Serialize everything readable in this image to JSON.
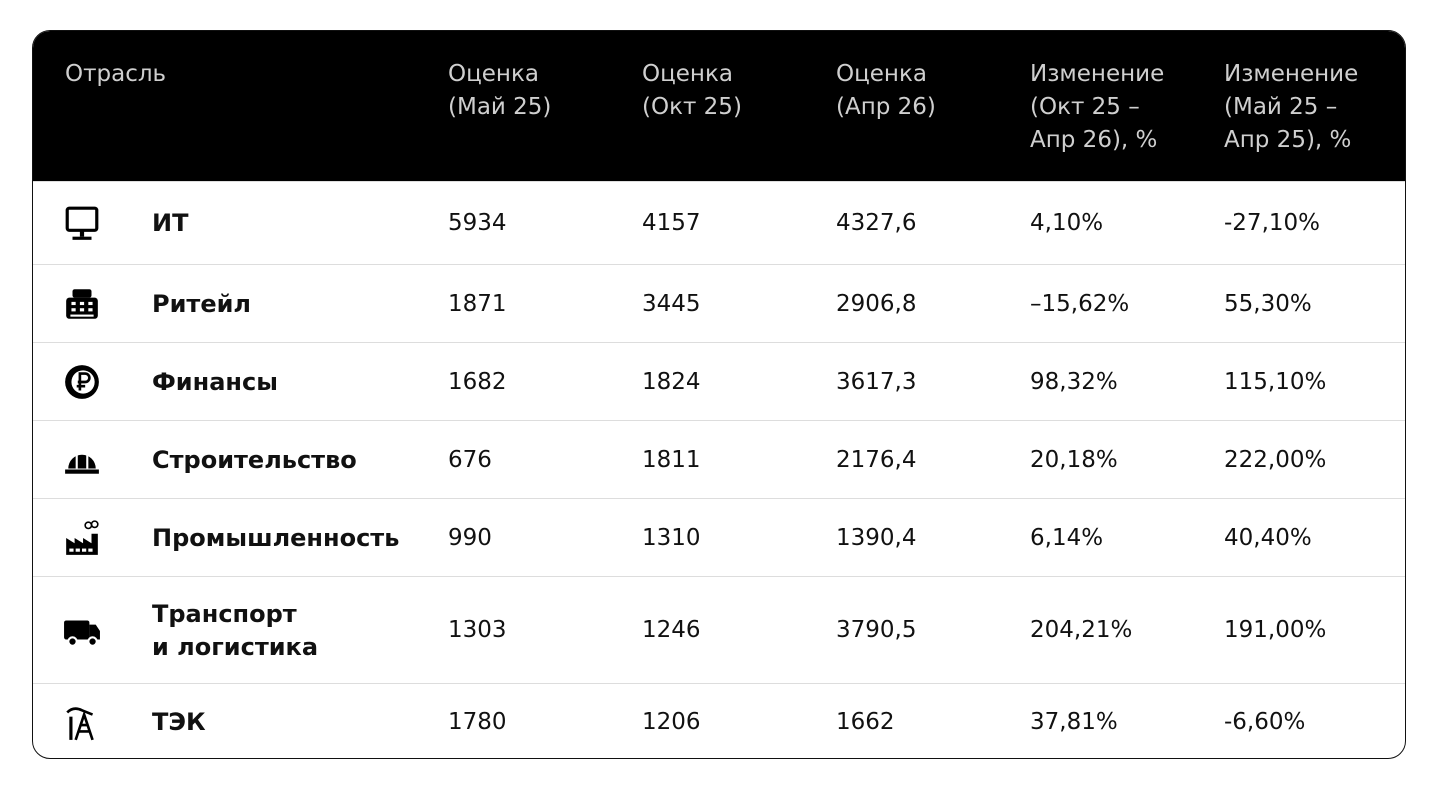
{
  "table": {
    "header": [
      "Отрасль",
      "Оценка\n(Май 25)",
      "Оценка\n(Окт 25)",
      "Оценка\n(Апр 26)",
      "Изменение\n(Окт 25 –\nАпр 26), %",
      "Изменение\n(Май 25 –\nАпр 25), %"
    ],
    "rows": [
      [
        "ИТ",
        "5934",
        "4157",
        "4327,6",
        "4,10%",
        "-27,10%"
      ],
      [
        "Ритейл",
        "1871",
        "3445",
        "2906,8",
        "–15,62%",
        "55,30%"
      ],
      [
        "Финансы",
        "1682",
        "1824",
        "3617,3",
        "98,32%",
        "115,10%"
      ],
      [
        "Строительство",
        "676",
        "1811",
        "2176,4",
        "20,18%",
        "222,00%"
      ],
      [
        "Промышленность",
        "990",
        "1310",
        "1390,4",
        "6,14%",
        "40,40%"
      ],
      [
        "Транспорт\nи логистика",
        "1303",
        "1246",
        "3790,5",
        "204,21%",
        "191,00%"
      ],
      [
        "ТЭК",
        "1780",
        "1206",
        "1662",
        "37,81%",
        "-6,60%"
      ]
    ]
  }
}
